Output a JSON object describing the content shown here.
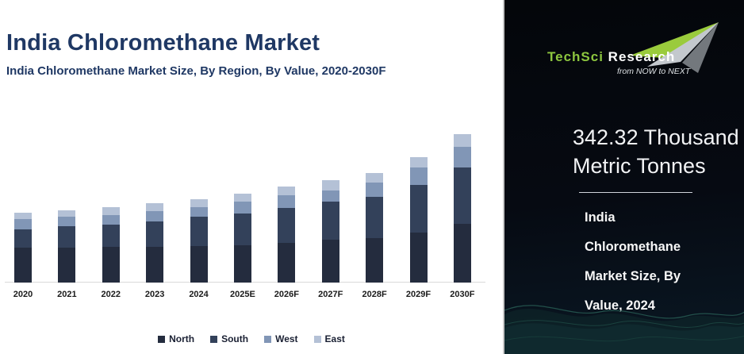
{
  "left_panel": {
    "title": "India Chloromethane Market",
    "subtitle": "India Chloromethane Market Size, By Region, By Value, 2020-2030F"
  },
  "chart_data": {
    "type": "bar",
    "stacked": true,
    "title": "India Chloromethane Market Size, By Region, By Value, 2020-2030F",
    "unit": "Thousand Metric Tonnes",
    "categories": [
      "2020",
      "2021",
      "2022",
      "2023",
      "2024",
      "2025E",
      "2026F",
      "2027F",
      "2028F",
      "2029F",
      "2030F"
    ],
    "series": [
      {
        "name": "North",
        "color": "#242c3e",
        "values": [
          145,
          144,
          147,
          147,
          149,
          152,
          163,
          176,
          183,
          204,
          241
        ]
      },
      {
        "name": "South",
        "color": "#33415a",
        "values": [
          74,
          86,
          91,
          104,
          121,
          132,
          145,
          155,
          168,
          196,
          231
        ]
      },
      {
        "name": "West",
        "color": "#8196b6",
        "values": [
          43,
          39,
          40,
          43,
          41,
          47,
          51,
          48,
          60,
          72,
          86
        ]
      },
      {
        "name": "East",
        "color": "#b4c1d6",
        "values": [
          25,
          29,
          33,
          33,
          31.32,
          33,
          35,
          41,
          40,
          43,
          52
        ]
      }
    ],
    "totals_estimated": [
      287,
      298,
      311,
      327,
      342.32,
      364,
      394,
      420,
      451,
      515,
      610
    ],
    "anchor": {
      "category": "2024",
      "total": 342.32
    },
    "ylim": [
      0,
      650
    ],
    "grid": false,
    "y_axis_visible": false,
    "legend_position": "bottom"
  },
  "right_panel": {
    "logo": {
      "brand_part1": "TechSci",
      "brand_part2": "Research",
      "tagline": "from NOW to NEXT"
    },
    "stat_value": "342.32 Thousand Metric Tonnes",
    "caption_lines": [
      "India",
      "Chloromethane",
      "Market Size, By",
      "Value, 2024"
    ]
  },
  "colors": {
    "title_navy": "#1f3864",
    "brand_green": "#8dc63f",
    "panel_bg": "#05070c",
    "axis_line": "#d9d9d9",
    "wave_teal": "#2e6b5e"
  }
}
